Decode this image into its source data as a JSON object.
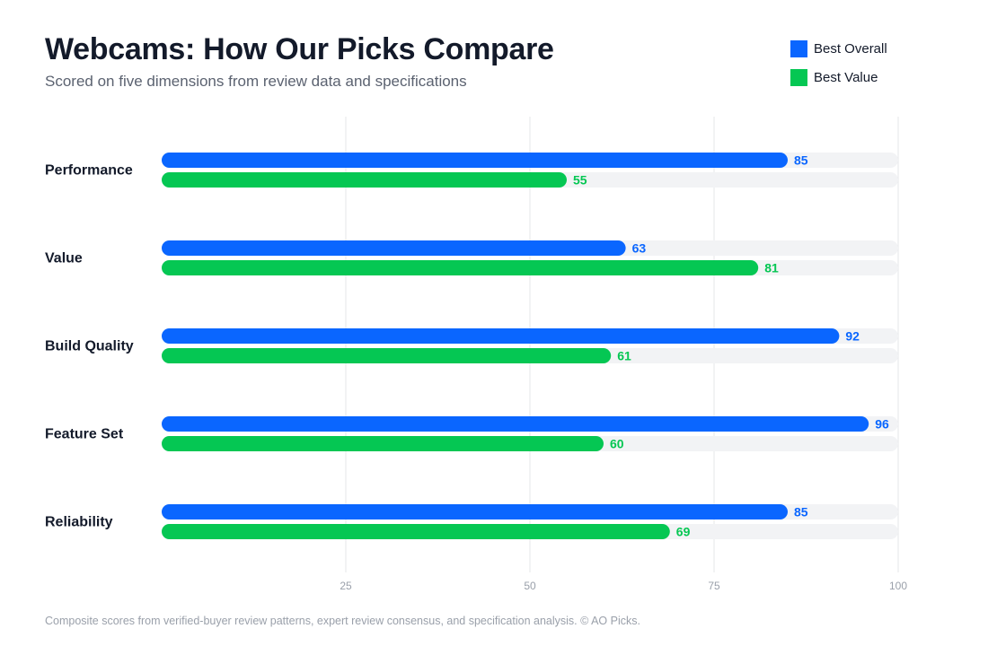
{
  "header": {
    "title": "Webcams: How Our Picks Compare",
    "subtitle": "Scored on five dimensions from review data and specifications"
  },
  "legend": {
    "items": [
      {
        "label": "Best Overall",
        "color": "#0a66ff"
      },
      {
        "label": "Best Value",
        "color": "#05c753"
      }
    ]
  },
  "footnote": "Composite scores from verified-buyer review patterns, expert review consensus, and specification analysis. © AO Picks.",
  "chart_data": {
    "type": "bar",
    "orientation": "horizontal",
    "title": "Webcams: How Our Picks Compare",
    "subtitle": "Scored on five dimensions from review data and specifications",
    "categories": [
      "Performance",
      "Value",
      "Build Quality",
      "Feature Set",
      "Reliability"
    ],
    "series": [
      {
        "name": "Best Overall",
        "color": "#0a66ff",
        "values": [
          85,
          63,
          92,
          96,
          85
        ]
      },
      {
        "name": "Best Value",
        "color": "#05c753",
        "values": [
          55,
          81,
          61,
          60,
          69
        ]
      }
    ],
    "xlim": [
      0,
      100
    ],
    "xticks": [
      25,
      50,
      75,
      100
    ],
    "grid": "vertical",
    "track_color": "#f2f3f5",
    "grid_color": "#e6e7ea",
    "tick_label_color": "#9aa0aa",
    "legend_position": "top-right",
    "data_labels": true
  }
}
